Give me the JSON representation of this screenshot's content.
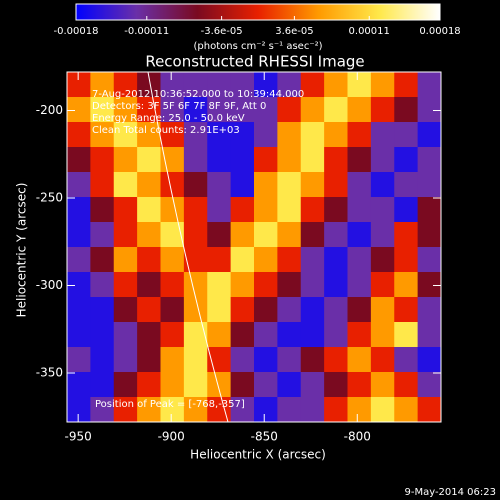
{
  "chart_data": {
    "type": "heatmap",
    "title": "Reconstructed RHESSI Image",
    "x_label": "Heliocentric X (arcsec)",
    "y_label": "Heliocentric Y (arcsec)",
    "colorbar_label": "(photons cm⁻² s⁻¹ asec⁻²)",
    "annotations": [
      "7-Aug-2012 10:36:52.000 to 10:39:44.000",
      "Detectors: 3F 5F 6F 7F 8F 9F, Att 0",
      "Energy Range: 25.0 - 50.0 keV",
      "Clean    Total counts: 2.91E+03",
      "Position of Peak = [-768,-357]"
    ],
    "timestamp": "9-May-2014 06:23",
    "xlim": [
      -956,
      -755
    ],
    "ylim": [
      -378,
      -178
    ],
    "xticks": [
      -950,
      -900,
      -850,
      -800
    ],
    "yticks": [
      -350,
      -300,
      -250,
      -200
    ],
    "clim": [
      -0.00018,
      0.00018
    ],
    "cticks": [
      -0.00018,
      -0.00011,
      {
        "value": -3.6e-05,
        "label": "-3.6e-05"
      },
      {
        "value": 3.6e-05,
        "label": "3.6e-05"
      },
      0.00011,
      0.00018
    ],
    "colormap": [
      "#0000ff",
      "#6a2fa8",
      "#7a0a20",
      "#e82000",
      "#ff9a00",
      "#ffe84a",
      "#ffffff"
    ],
    "z": [
      [
        0,
        6e-05,
        0,
        -6e-05,
        -0.00012,
        -0.00012,
        -0.00012,
        -0.00012,
        -0.00016,
        -0.00012,
        0,
        6e-05,
        0.00012,
        6e-05,
        0,
        -0.00012
      ],
      [
        6e-05,
        0.00012,
        6e-05,
        0,
        -0.00012,
        -0.00016,
        -0.00012,
        -0.00012,
        -0.00012,
        0,
        6e-05,
        0.00012,
        6e-05,
        0,
        -6e-05,
        -0.00012
      ],
      [
        0,
        6e-05,
        0.00012,
        6e-05,
        0,
        -0.00012,
        -0.00016,
        -0.00016,
        -0.00012,
        6e-05,
        0.00012,
        6e-05,
        0,
        -0.00012,
        -0.00012,
        -0.00016
      ],
      [
        -6e-05,
        0,
        6e-05,
        0.00012,
        6e-05,
        -0.00012,
        -0.00016,
        -0.00016,
        0,
        6e-05,
        0.00012,
        0,
        -6e-05,
        -0.00012,
        -0.00016,
        -0.00012
      ],
      [
        -0.00012,
        0,
        0.00012,
        6e-05,
        0,
        -6e-05,
        -0.00012,
        -0.00016,
        6e-05,
        0.00012,
        6e-05,
        0,
        -0.00012,
        -0.00016,
        -0.00012,
        -0.00012
      ],
      [
        -0.00016,
        -6e-05,
        0,
        0.00012,
        6e-05,
        0,
        -0.00012,
        0,
        6e-05,
        0.00012,
        0,
        -6e-05,
        -0.00012,
        -0.00012,
        -0.00016,
        -6e-05
      ],
      [
        -0.00016,
        -0.00012,
        0,
        6e-05,
        0.00012,
        0,
        -6e-05,
        6e-05,
        0.00012,
        6e-05,
        -6e-05,
        -0.00012,
        -0.00016,
        -0.00012,
        0,
        -6e-05
      ],
      [
        -0.00012,
        -6e-05,
        6e-05,
        0,
        6e-05,
        0,
        0,
        0.00012,
        6e-05,
        0,
        -0.00012,
        -0.00016,
        -0.00012,
        -6e-05,
        0,
        -0.00012
      ],
      [
        -0.00016,
        -0.00012,
        0,
        -6e-05,
        0,
        6e-05,
        0.00012,
        6e-05,
        0,
        -6e-05,
        -0.00012,
        -0.00016,
        -0.00012,
        0,
        6e-05,
        -6e-05
      ],
      [
        -0.00016,
        -0.00016,
        -6e-05,
        0,
        -6e-05,
        6e-05,
        0.00012,
        0,
        -6e-05,
        -0.00012,
        -0.00016,
        -0.00012,
        -6e-05,
        6e-05,
        0,
        -0.00012
      ],
      [
        -0.00016,
        -0.00016,
        -0.00012,
        -6e-05,
        0,
        0.00012,
        6e-05,
        -6e-05,
        -0.00012,
        -0.00016,
        -0.00016,
        -0.00012,
        0,
        6e-05,
        0.00012,
        -0.00012
      ],
      [
        -0.00012,
        -0.00016,
        -0.00012,
        -6e-05,
        6e-05,
        0.00012,
        0,
        -0.00012,
        -0.00016,
        -0.00012,
        -6e-05,
        0,
        6e-05,
        0,
        -0.00012,
        -0.00016
      ],
      [
        -0.00016,
        -0.00016,
        -6e-05,
        0,
        6e-05,
        0.00012,
        6e-05,
        -6e-05,
        -0.00012,
        -0.00016,
        -0.00012,
        -6e-05,
        0,
        6e-05,
        0,
        -0.00012
      ],
      [
        -0.00016,
        -0.00012,
        0,
        6e-05,
        0.00012,
        6e-05,
        0,
        -0.00012,
        -0.00016,
        -0.00012,
        -0.00012,
        0,
        6e-05,
        0.00012,
        6e-05,
        0
      ]
    ]
  }
}
